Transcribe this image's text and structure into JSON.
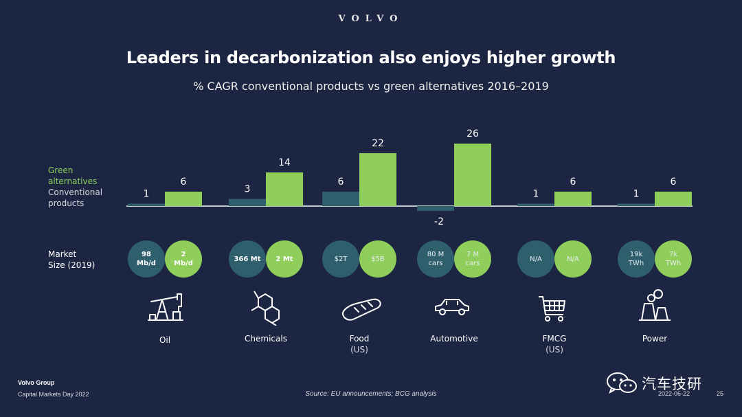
{
  "brand_logo": "VOLVO",
  "legend": {
    "green_line1": "Green",
    "green_line2": "alternatives",
    "conv_line1": "Conventional",
    "conv_line2": "products"
  },
  "market_size_label_line1": "Market",
  "market_size_label_line2": "Size (2019)",
  "colors": {
    "background": "#1c2541",
    "conventional": "#2f5f6d",
    "green": "#8fce5a"
  },
  "chart_data": {
    "type": "bar",
    "title": "Leaders in decarbonization also enjoys higher growth",
    "subtitle": "% CAGR conventional products vs green alternatives 2016–2019",
    "categories": [
      "Oil",
      "Chemicals",
      "Food",
      "Automotive",
      "FMCG",
      "Power"
    ],
    "series": [
      {
        "name": "Conventional products",
        "values": [
          1,
          3,
          6,
          -2,
          1,
          1
        ]
      },
      {
        "name": "Green alternatives",
        "values": [
          6,
          14,
          22,
          26,
          6,
          6
        ]
      }
    ],
    "value_labels": {
      "conventional": [
        "1",
        "3",
        "6",
        "-2",
        "1",
        "1"
      ],
      "green": [
        "6",
        "14",
        "22",
        "26",
        "6",
        "6"
      ]
    },
    "grid": false,
    "legend_position": "left"
  },
  "categories": [
    {
      "name": "Oil",
      "sub": "",
      "icon": "oil-pump-icon",
      "market_conv": [
        "98",
        "Mb/d"
      ],
      "market_green": [
        "2",
        "Mb/d"
      ],
      "bold": true
    },
    {
      "name": "Chemicals",
      "sub": "",
      "icon": "molecule-icon",
      "market_conv": [
        "366 Mt"
      ],
      "market_green": [
        "2 Mt"
      ],
      "bold": true
    },
    {
      "name": "Food",
      "sub": "(US)",
      "icon": "bread-icon",
      "market_conv": [
        "$2T"
      ],
      "market_green": [
        "$5B"
      ],
      "bold": false
    },
    {
      "name": "Automotive",
      "sub": "",
      "icon": "car-icon",
      "market_conv": [
        "80 M",
        "cars"
      ],
      "market_green": [
        "7 M",
        "cars"
      ],
      "bold": false
    },
    {
      "name": "FMCG",
      "sub": "(US)",
      "icon": "shopping-cart-icon",
      "market_conv": [
        "N/A"
      ],
      "market_green": [
        "N/A"
      ],
      "bold": false
    },
    {
      "name": "Power",
      "sub": "",
      "icon": "power-plant-icon",
      "market_conv": [
        "19k",
        "TWh"
      ],
      "market_green": [
        "7k",
        "TWh"
      ],
      "bold": false
    }
  ],
  "footer": {
    "brand": "Volvo Group",
    "event": "Capital Markets Day 2022",
    "source": "Source: EU announcements; BCG analysis",
    "date": "2022-06-22",
    "page": "25"
  },
  "watermark": {
    "text": "汽车技研",
    "icon": "wechat-icon"
  }
}
